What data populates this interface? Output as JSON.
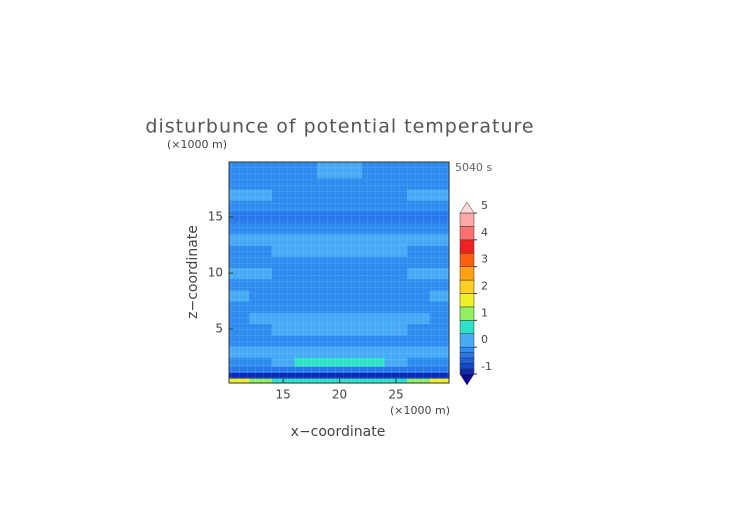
{
  "chart_data": {
    "type": "contour",
    "title": "disturbunce of potential temperature",
    "y_unit": "(×1000 m)",
    "x_unit": "(×1000 m)",
    "time_label": "5040 s",
    "x_label": "x−coordinate",
    "y_label": "z−coordinate",
    "xlim": [
      10.2,
      29.7
    ],
    "ylim": [
      0.2,
      19.9
    ],
    "xticks": [
      15,
      20,
      25
    ],
    "yticks": [
      5,
      10,
      15
    ],
    "field": {
      "x": [
        11,
        13,
        15,
        17,
        19,
        21,
        23,
        25,
        27,
        29
      ],
      "z": [
        0.4,
        0.9,
        1.4,
        2.0,
        3,
        4,
        5,
        6,
        7,
        8,
        9,
        10,
        11,
        12,
        13,
        14,
        15,
        16,
        17,
        18,
        19
      ],
      "values": [
        [
          1.6,
          1.2,
          0.8,
          0.7,
          0.7,
          0.7,
          0.7,
          0.8,
          1.2,
          1.6
        ],
        [
          -0.9,
          -0.9,
          -0.9,
          -0.9,
          -0.9,
          -0.9,
          -0.9,
          -0.9,
          -0.9,
          -0.9
        ],
        [
          -0.3,
          -0.3,
          -0.3,
          -0.3,
          -0.3,
          -0.3,
          -0.3,
          -0.3,
          -0.3,
          -0.3
        ],
        [
          -0.1,
          -0.1,
          0.3,
          0.6,
          0.7,
          0.7,
          0.6,
          0.3,
          -0.1,
          -0.1
        ],
        [
          0.2,
          0.2,
          0.2,
          0.2,
          0.2,
          0.2,
          0.2,
          0.2,
          0.2,
          0.2
        ],
        [
          -0.1,
          -0.1,
          -0.1,
          -0.1,
          -0.1,
          -0.1,
          -0.1,
          -0.1,
          -0.1,
          -0.1
        ],
        [
          -0.1,
          -0.1,
          0.2,
          0.2,
          0.2,
          0.2,
          0.2,
          0.2,
          -0.1,
          -0.1
        ],
        [
          -0.1,
          0.2,
          0.2,
          0.2,
          0.2,
          0.2,
          0.2,
          0.2,
          0.2,
          -0.1
        ],
        [
          -0.1,
          -0.1,
          -0.1,
          -0.1,
          -0.1,
          -0.1,
          -0.1,
          -0.1,
          -0.1,
          -0.1
        ],
        [
          0.2,
          -0.1,
          -0.1,
          -0.1,
          -0.1,
          -0.1,
          -0.1,
          -0.1,
          -0.1,
          0.2
        ],
        [
          -0.1,
          -0.1,
          -0.1,
          -0.1,
          -0.1,
          -0.1,
          -0.1,
          -0.1,
          -0.1,
          -0.1
        ],
        [
          0.2,
          0.2,
          -0.1,
          -0.1,
          -0.1,
          -0.1,
          -0.1,
          -0.1,
          0.2,
          0.2
        ],
        [
          -0.1,
          -0.1,
          -0.1,
          -0.1,
          -0.1,
          -0.1,
          -0.1,
          -0.1,
          -0.1,
          -0.1
        ],
        [
          -0.1,
          -0.1,
          0.2,
          0.2,
          0.2,
          0.2,
          0.2,
          0.2,
          -0.1,
          -0.1
        ],
        [
          0.2,
          0.2,
          0.2,
          0.2,
          0.2,
          0.2,
          0.2,
          0.2,
          0.2,
          0.2
        ],
        [
          -0.1,
          -0.1,
          -0.1,
          -0.1,
          -0.1,
          -0.1,
          -0.1,
          -0.1,
          -0.1,
          -0.1
        ],
        [
          -0.3,
          -0.3,
          -0.3,
          -0.3,
          -0.3,
          -0.3,
          -0.3,
          -0.3,
          -0.3,
          -0.3
        ],
        [
          -0.1,
          -0.1,
          -0.1,
          -0.1,
          -0.1,
          -0.1,
          -0.1,
          -0.1,
          -0.1,
          -0.1
        ],
        [
          0.2,
          0.2,
          -0.1,
          -0.1,
          -0.1,
          -0.1,
          -0.1,
          -0.1,
          0.2,
          0.2
        ],
        [
          -0.1,
          -0.1,
          -0.1,
          -0.1,
          -0.1,
          -0.1,
          -0.1,
          -0.1,
          -0.1,
          -0.1
        ],
        [
          -0.1,
          -0.1,
          -0.1,
          -0.1,
          0.2,
          0.2,
          -0.1,
          -0.1,
          -0.1,
          -0.1
        ]
      ]
    },
    "colorbar": {
      "levels": [
        -1,
        -0.8,
        -0.6,
        -0.4,
        -0.2,
        0,
        0.5,
        1,
        1.5,
        2,
        2.5,
        3,
        3.5,
        4,
        4.5,
        5
      ],
      "colors": [
        "#0a2ab4",
        "#1448c8",
        "#1e60dc",
        "#2878ec",
        "#2c8cef",
        "#46aaf6",
        "#2ee0c8",
        "#90f060",
        "#f0f028",
        "#ffd020",
        "#ffa010",
        "#ff6010",
        "#f02020",
        "#ff7070",
        "#ffa8a8"
      ],
      "under_color": "#0a0a90",
      "over_color": "#ffd8d8",
      "ticks": [
        -1,
        0,
        1,
        2,
        3,
        4,
        5
      ]
    }
  }
}
